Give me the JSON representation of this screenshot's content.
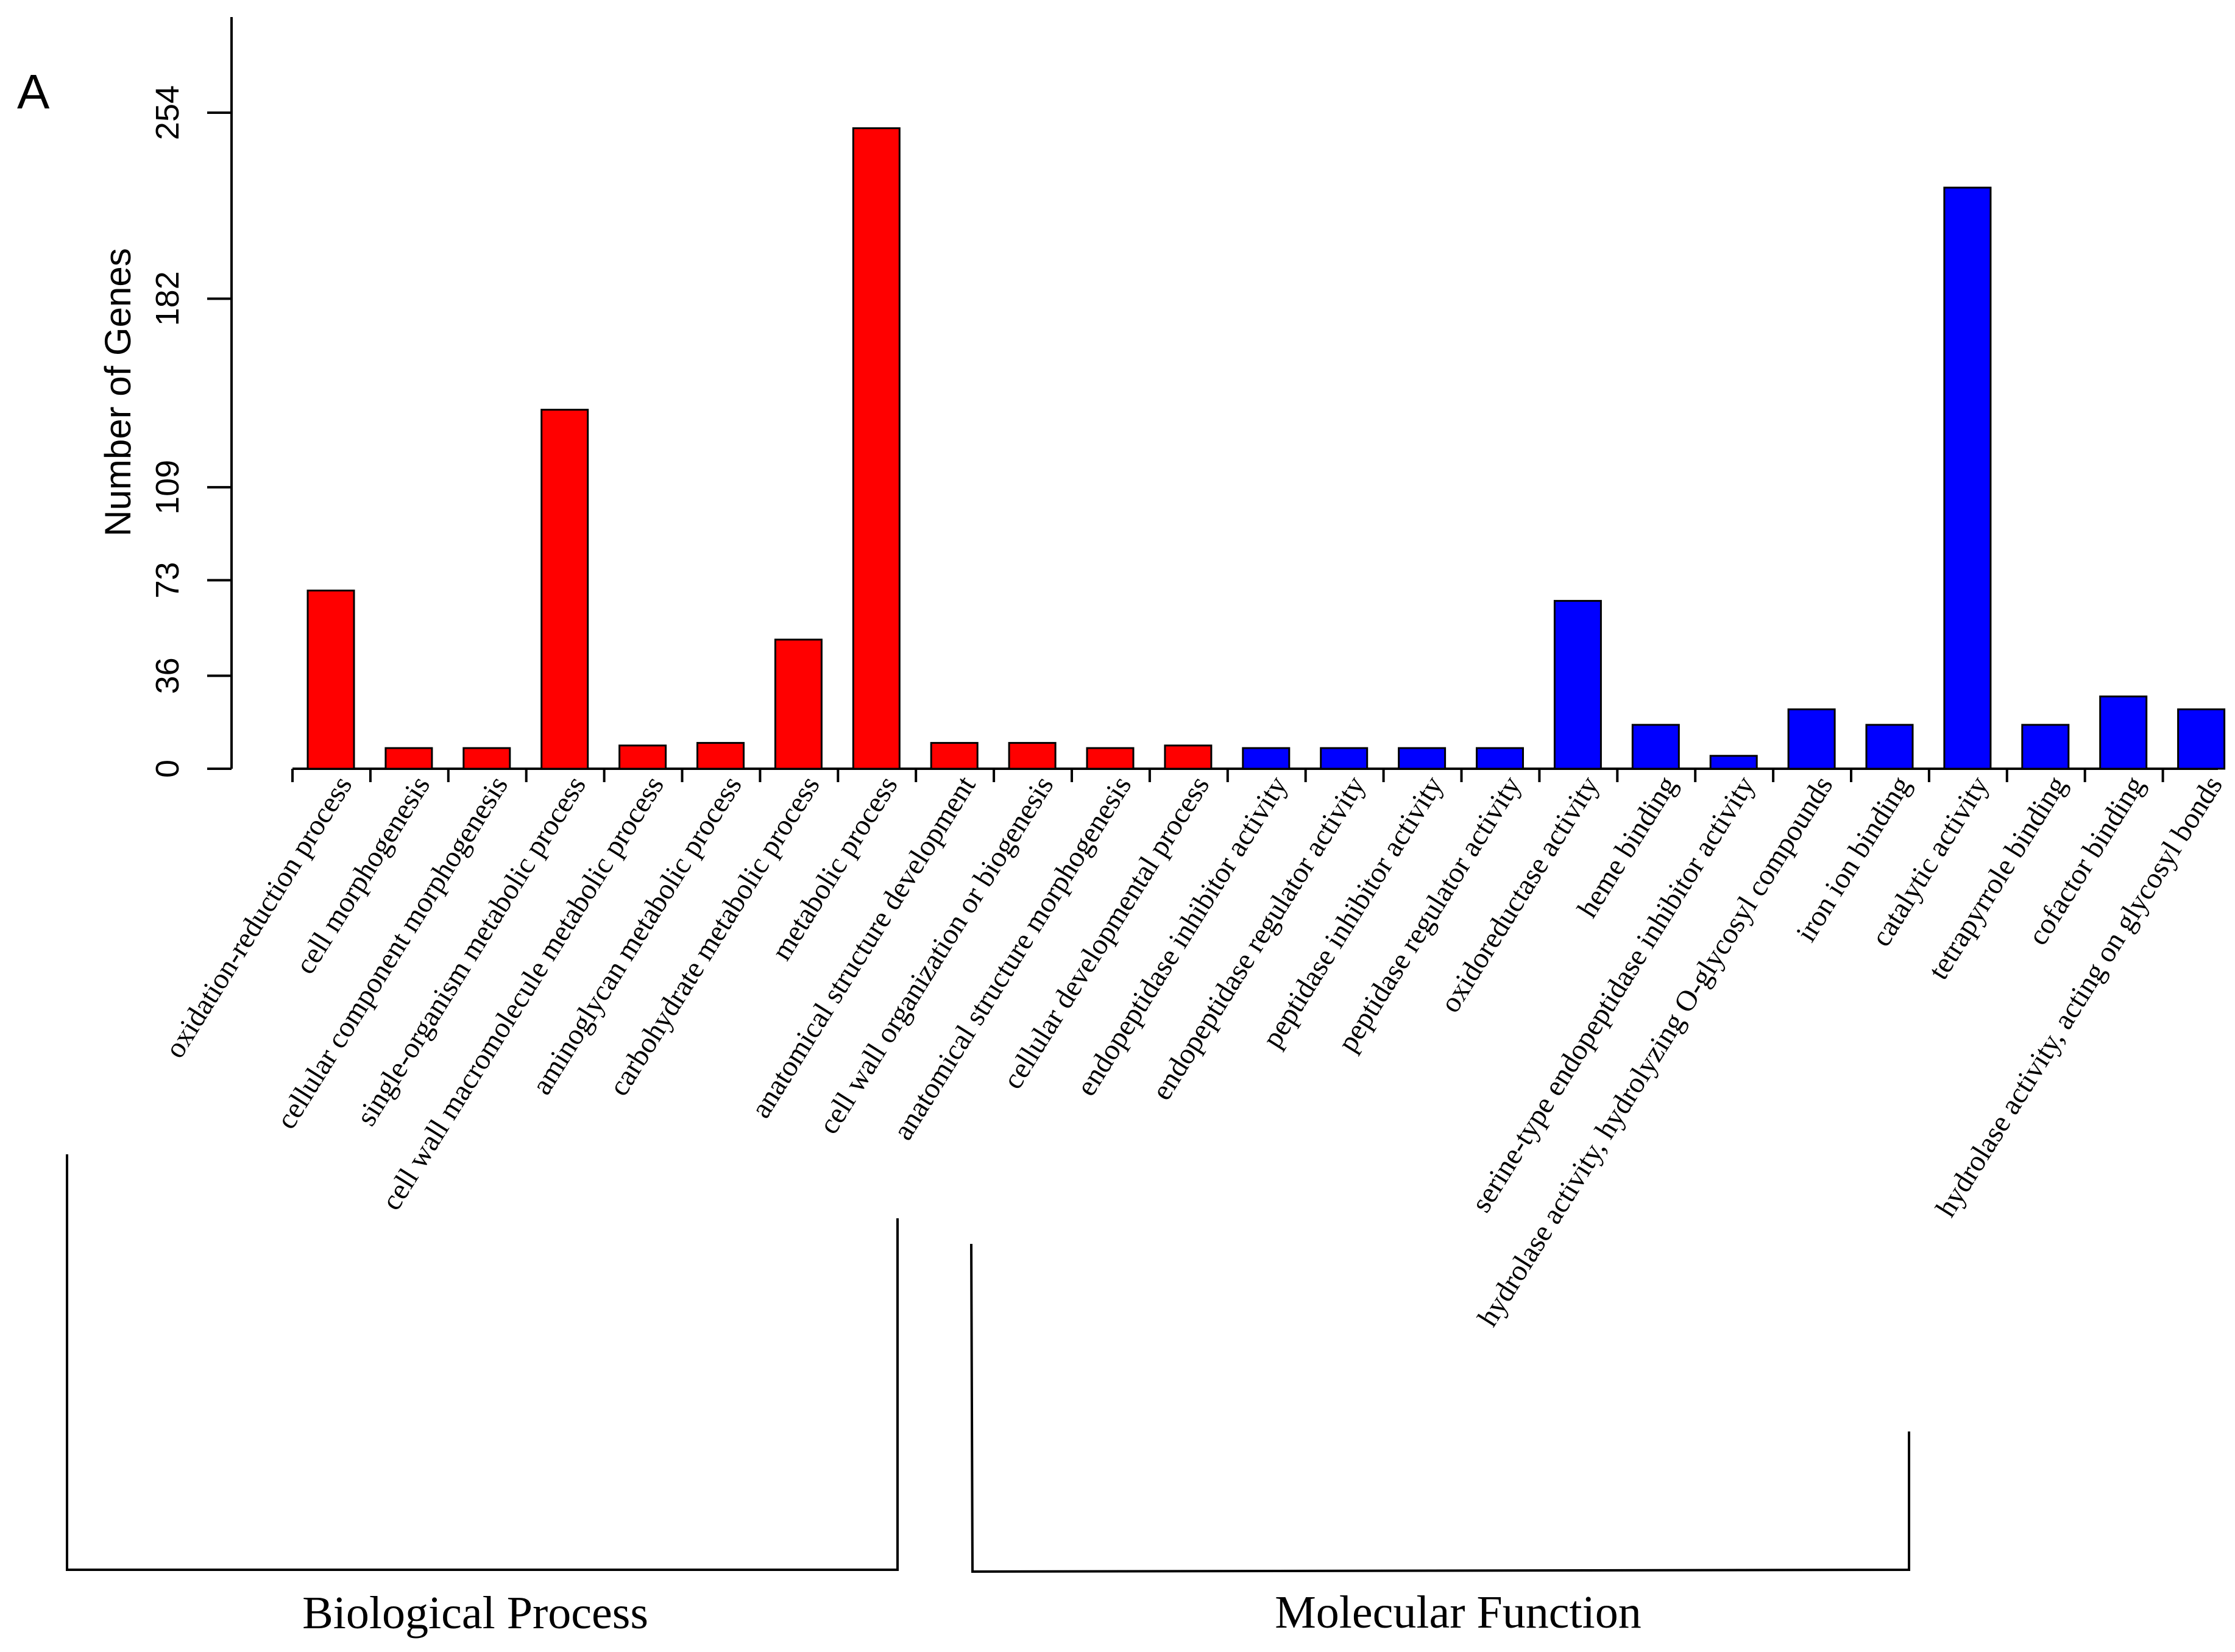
{
  "panel_label": "A",
  "chart_data": {
    "type": "bar",
    "title": "",
    "xlabel": "",
    "ylabel": "Number of Genes",
    "ylim": [
      0,
      290
    ],
    "yticks": [
      0,
      36,
      73,
      109,
      182,
      254
    ],
    "categories": [
      "oxidation-reduction process",
      "cell morphogenesis",
      "cellular component morphogenesis",
      "single-organism metabolic process",
      "cell wall macromolecule metabolic process",
      "aminoglycan metabolic process",
      "carbohydrate metabolic process",
      "metabolic process",
      "anatomical structure development",
      "cell wall organization or biogenesis",
      "anatomical structure morphogenesis",
      "cellular developmental process",
      "endopeptidase inhibitor activity",
      "endopeptidase regulator activity",
      "peptidase inhibitor activity",
      "peptidase regulator activity",
      "oxidoreductase activity",
      "heme binding",
      "serine-type endopeptidase inhibitor activity",
      "hydrolase activity, hydrolyzing O-glycosyl compounds",
      "iron ion binding",
      "catalytic activity",
      "tetrapyrrole binding",
      "cofactor binding",
      "hydrolase activity, acting on glycosyl bonds"
    ],
    "values": [
      69,
      8,
      8,
      139,
      9,
      10,
      50,
      248,
      10,
      10,
      8,
      9,
      8,
      8,
      8,
      8,
      65,
      17,
      5,
      23,
      17,
      225,
      17,
      28,
      23
    ],
    "groups": [
      {
        "name": "Biological Process",
        "start": 0,
        "end": 11,
        "color": "#ff0000"
      },
      {
        "name": "Molecular Function",
        "start": 12,
        "end": 24,
        "color": "#0000ff"
      }
    ]
  }
}
